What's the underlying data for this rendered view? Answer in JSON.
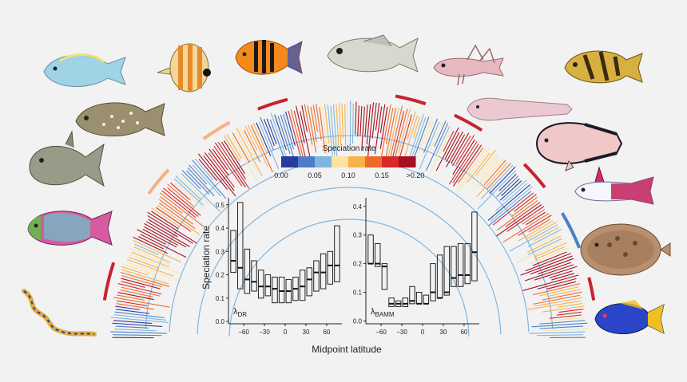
{
  "figure": {
    "colorbar": {
      "title": "Speciation rate",
      "tick_labels": [
        "0.00",
        "0.05",
        "0.10",
        "0.15",
        ">0.20"
      ],
      "colors": [
        "#2a3aa0",
        "#4a7fc8",
        "#7fb6e0",
        "#fde3a4",
        "#f7b24a",
        "#ef6a2a",
        "#d8282a",
        "#a50f1f"
      ]
    },
    "ylabel": "Speciation rate",
    "xlabel": "Midpoint latitude",
    "tree": {
      "branch_color_low": "#7fb6e0",
      "branch_color_high": "#c1121f",
      "highlight_bar_colors": [
        "#c8232c",
        "#f4b183",
        "#4a7fc8"
      ]
    },
    "fish_icons": [
      "surgeonfish-icon",
      "butterflyfish-icon",
      "angelfish-icon",
      "snapper-icon",
      "blenny-icon",
      "rockfish-icon",
      "pufferfish-icon",
      "eelpout-icon",
      "triggerfish-icon",
      "snailfish-icon",
      "parrotfish-icon",
      "dartfish-icon",
      "eel-icon",
      "flounder-icon",
      "damselfish-icon"
    ]
  },
  "chart_data": [
    {
      "type": "box",
      "label": "λDR",
      "label_main": "λ",
      "label_sub": "DR",
      "categories": [
        -75,
        -65,
        -55,
        -45,
        -35,
        -25,
        -15,
        -5,
        5,
        15,
        25,
        35,
        45,
        55,
        65,
        75
      ],
      "boxes": [
        [
          0.21,
          0.26,
          0.39
        ],
        [
          0.14,
          0.23,
          0.51
        ],
        [
          0.12,
          0.18,
          0.31
        ],
        [
          0.13,
          0.17,
          0.26
        ],
        [
          0.1,
          0.15,
          0.22
        ],
        [
          0.11,
          0.15,
          0.2
        ],
        [
          0.08,
          0.14,
          0.19
        ],
        [
          0.08,
          0.13,
          0.19
        ],
        [
          0.08,
          0.13,
          0.18
        ],
        [
          0.09,
          0.14,
          0.19
        ],
        [
          0.09,
          0.15,
          0.22
        ],
        [
          0.11,
          0.18,
          0.23
        ],
        [
          0.13,
          0.21,
          0.26
        ],
        [
          0.14,
          0.21,
          0.29
        ],
        [
          0.16,
          0.24,
          0.3
        ],
        [
          0.17,
          0.24,
          0.41
        ]
      ],
      "xticks": [
        -60,
        -30,
        0,
        30,
        60
      ],
      "yticks": [
        0.0,
        0.1,
        0.2,
        0.3,
        0.4,
        0.5
      ],
      "ylim": [
        -0.01,
        0.53
      ],
      "xlim": [
        -82,
        82
      ]
    },
    {
      "type": "box",
      "label": "λBAMM",
      "label_main": "λ",
      "label_sub": "BAMM",
      "categories": [
        -75,
        -65,
        -55,
        -45,
        -35,
        -25,
        -15,
        -5,
        5,
        15,
        25,
        35,
        45,
        55,
        65,
        75
      ],
      "boxes": [
        [
          0.2,
          0.2,
          0.3
        ],
        [
          0.19,
          0.2,
          0.27
        ],
        [
          0.11,
          0.19,
          0.2
        ],
        [
          0.05,
          0.06,
          0.08
        ],
        [
          0.05,
          0.06,
          0.07
        ],
        [
          0.05,
          0.06,
          0.08
        ],
        [
          0.06,
          0.07,
          0.12
        ],
        [
          0.06,
          0.06,
          0.1
        ],
        [
          0.06,
          0.06,
          0.09
        ],
        [
          0.07,
          0.1,
          0.2
        ],
        [
          0.08,
          0.08,
          0.23
        ],
        [
          0.09,
          0.1,
          0.26
        ],
        [
          0.12,
          0.15,
          0.26
        ],
        [
          0.12,
          0.16,
          0.27
        ],
        [
          0.13,
          0.16,
          0.27
        ],
        [
          0.14,
          0.24,
          0.38
        ]
      ],
      "xticks": [
        -60,
        -30,
        0,
        30,
        60
      ],
      "yticks": [
        0.0,
        0.1,
        0.2,
        0.3,
        0.4
      ],
      "ylim": [
        -0.01,
        0.43
      ],
      "xlim": [
        -82,
        82
      ]
    }
  ]
}
